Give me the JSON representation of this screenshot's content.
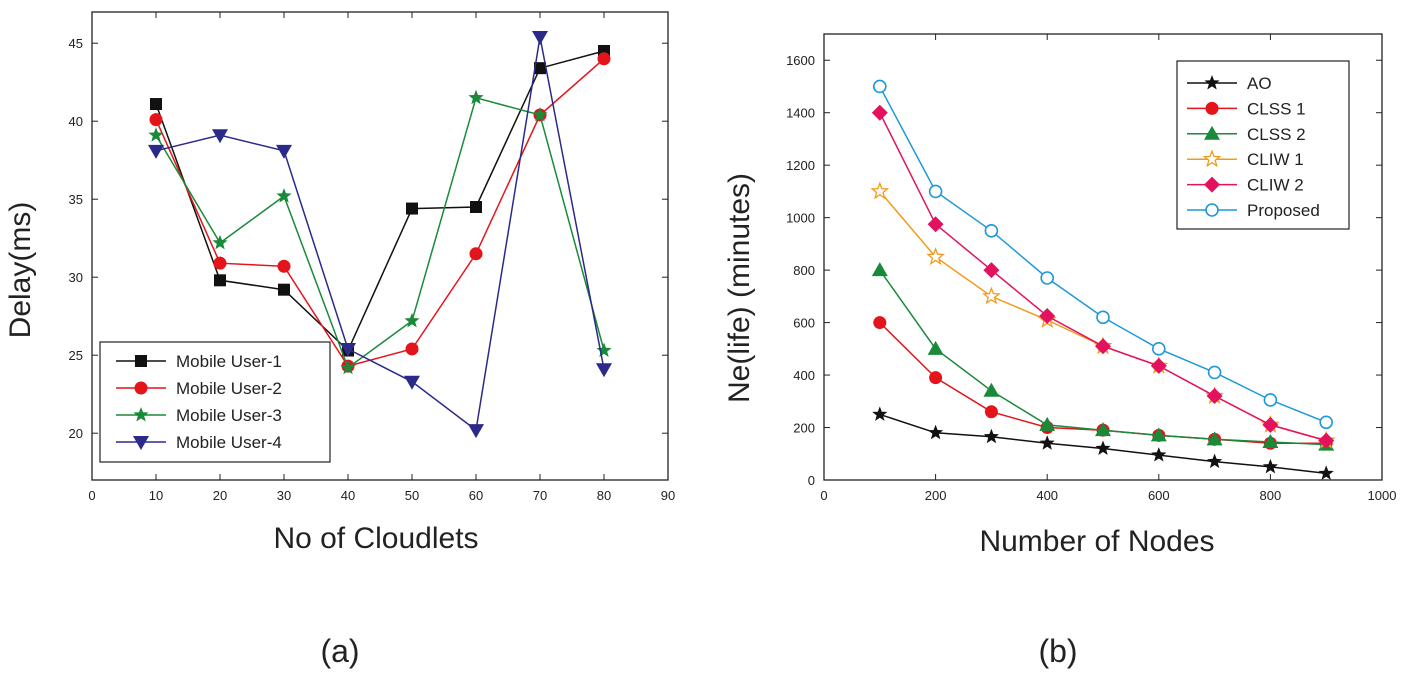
{
  "chart_data": [
    {
      "type": "line",
      "caption": "(a)",
      "xlabel": "No of Cloudlets",
      "ylabel": "Delay(ms)",
      "xlim": [
        0,
        90
      ],
      "ylim": [
        17,
        47
      ],
      "xticks": [
        0,
        10,
        20,
        30,
        40,
        50,
        60,
        70,
        80,
        90
      ],
      "yticks": [
        20,
        25,
        30,
        35,
        40,
        45
      ],
      "legend_position": "bottom-left",
      "x": [
        10,
        20,
        30,
        40,
        50,
        60,
        70,
        80
      ],
      "series": [
        {
          "name": "Mobile User-1",
          "color": "#111111",
          "marker": "square",
          "values": [
            41.1,
            29.8,
            29.2,
            25.3,
            34.4,
            34.5,
            43.4,
            44.5
          ]
        },
        {
          "name": "Mobile User-2",
          "color": "#e4141b",
          "marker": "circle",
          "values": [
            40.1,
            30.9,
            30.7,
            24.3,
            25.4,
            31.5,
            40.4,
            44.0
          ]
        },
        {
          "name": "Mobile User-3",
          "color": "#1a8a3a",
          "marker": "star",
          "values": [
            39.1,
            32.2,
            35.2,
            24.2,
            27.2,
            41.5,
            40.4,
            25.3
          ]
        },
        {
          "name": "Mobile User-4",
          "color": "#2b2a8a",
          "marker": "triangle-down",
          "values": [
            38.1,
            39.1,
            38.1,
            25.4,
            23.3,
            20.2,
            45.4,
            24.1
          ]
        }
      ]
    },
    {
      "type": "line",
      "caption": "(b)",
      "xlabel": "Number of Nodes",
      "ylabel": "Ne(life)  (minutes)",
      "xlim": [
        0,
        1000
      ],
      "ylim": [
        0,
        1700
      ],
      "xticks": [
        0,
        200,
        400,
        600,
        800,
        1000
      ],
      "yticks": [
        0,
        200,
        400,
        600,
        800,
        1000,
        1200,
        1400,
        1600
      ],
      "legend_position": "top-right",
      "x": [
        100,
        200,
        300,
        400,
        500,
        600,
        700,
        800,
        900
      ],
      "series": [
        {
          "name": "AO",
          "color": "#111111",
          "marker": "star",
          "values": [
            250,
            180,
            165,
            140,
            120,
            95,
            70,
            50,
            25
          ]
        },
        {
          "name": "CLSS 1",
          "color": "#e4141b",
          "marker": "circle",
          "values": [
            600,
            390,
            260,
            200,
            190,
            170,
            155,
            140,
            140
          ]
        },
        {
          "name": "CLSS 2",
          "color": "#1a8a3a",
          "marker": "triangle-up",
          "values": [
            800,
            500,
            340,
            210,
            190,
            170,
            155,
            145,
            135
          ]
        },
        {
          "name": "CLIW 1",
          "color": "#f39a1e",
          "marker": "star-open",
          "values": [
            1100,
            850,
            700,
            610,
            510,
            435,
            320,
            210,
            150
          ]
        },
        {
          "name": "CLIW 2",
          "color": "#e3125f",
          "marker": "diamond",
          "values": [
            1400,
            975,
            800,
            625,
            510,
            435,
            320,
            210,
            150
          ]
        },
        {
          "name": "Proposed",
          "color": "#1d9ad6",
          "marker": "circle-open",
          "values": [
            1500,
            1100,
            950,
            770,
            620,
            500,
            410,
            305,
            220
          ]
        }
      ]
    }
  ]
}
